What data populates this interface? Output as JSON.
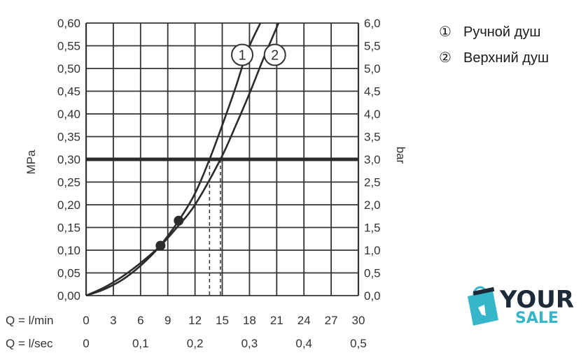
{
  "chart_data": {
    "type": "line",
    "xlabel_rows": [
      {
        "label": "Q = l/min",
        "ticks": [
          "0",
          "3",
          "6",
          "9",
          "12",
          "15",
          "18",
          "21",
          "24",
          "27",
          "30"
        ],
        "tick_values": [
          0,
          3,
          6,
          9,
          12,
          15,
          18,
          21,
          24,
          27,
          30
        ]
      },
      {
        "label": "Q = l/sec",
        "ticks": [
          "0",
          "0,1",
          "0,2",
          "0,3",
          "0,4",
          "0,5"
        ],
        "tick_values": [
          0,
          6,
          12,
          18,
          24,
          30
        ]
      }
    ],
    "xlim": [
      0,
      30
    ],
    "ylabel_left": "MPa",
    "ylabel_right": "bar",
    "ylim": [
      0,
      0.6
    ],
    "yticks_left": [
      "0,00",
      "0,05",
      "0,10",
      "0,15",
      "0,20",
      "0,25",
      "0,30",
      "0,35",
      "0,40",
      "0,45",
      "0,50",
      "0,55",
      "0,60"
    ],
    "yticks_right": [
      "0,0",
      "0,5",
      "1,0",
      "1,5",
      "2,0",
      "2,5",
      "3,0",
      "3,5",
      "4,0",
      "4,5",
      "5,0",
      "5,5",
      "6,0"
    ],
    "grid": true,
    "reference_line": {
      "y": 0.3,
      "style": "bold"
    },
    "series": [
      {
        "name": "1",
        "x": [
          0,
          2,
          4,
          6,
          8,
          10.2,
          12,
          13.6,
          15,
          16.5,
          17.8,
          19.2
        ],
        "y": [
          0,
          0.014,
          0.035,
          0.066,
          0.106,
          0.165,
          0.225,
          0.3,
          0.375,
          0.46,
          0.54,
          0.6
        ]
      },
      {
        "name": "2",
        "x": [
          0,
          2,
          4,
          6,
          8.2,
          10,
          12,
          14.8,
          16.5,
          18,
          19.5,
          21.2
        ],
        "y": [
          0,
          0.018,
          0.042,
          0.072,
          0.11,
          0.15,
          0.2,
          0.3,
          0.375,
          0.445,
          0.52,
          0.6
        ]
      }
    ],
    "points": [
      {
        "series": "1",
        "x": 10.2,
        "y": 0.165
      },
      {
        "series": "2",
        "x": 8.2,
        "y": 0.11
      }
    ],
    "dashed_drops": [
      {
        "series": "1",
        "x": 13.6,
        "y": 0.3
      },
      {
        "series": "2",
        "x": 14.8,
        "y": 0.3
      }
    ],
    "curve_markers": [
      {
        "label": "1",
        "x": 17.2,
        "y": 0.53
      },
      {
        "label": "2",
        "x": 20.8,
        "y": 0.53
      }
    ]
  },
  "legend": [
    {
      "symbol": "①",
      "text": "Ручной душ"
    },
    {
      "symbol": "②",
      "text": "Верхний душ"
    }
  ],
  "watermark": {
    "word1": "YOUR",
    "word2": "SALE",
    "color_dark": "#1d2b38",
    "color_accent": "#35b6c9"
  }
}
